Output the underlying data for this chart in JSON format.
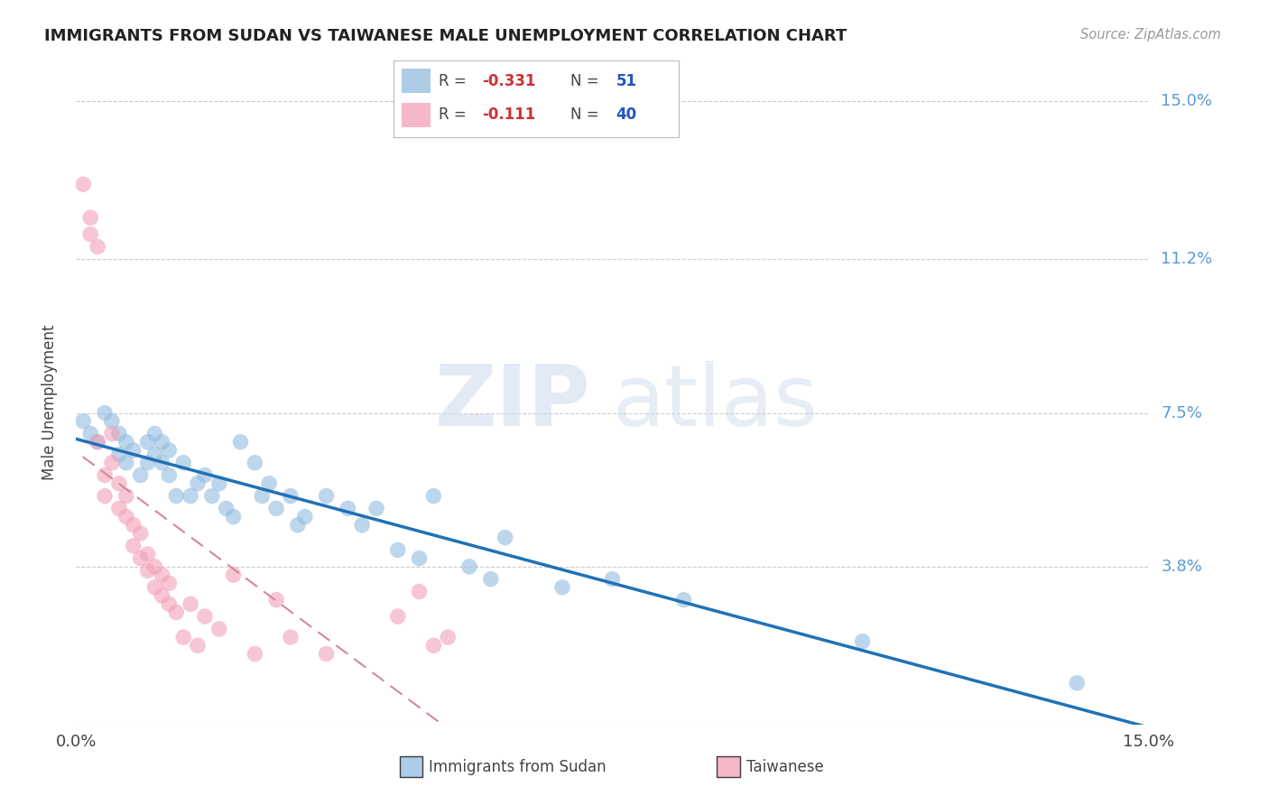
{
  "title": "IMMIGRANTS FROM SUDAN VS TAIWANESE MALE UNEMPLOYMENT CORRELATION CHART",
  "source": "Source: ZipAtlas.com",
  "ylabel": "Male Unemployment",
  "ytick_labels": [
    "",
    "3.8%",
    "7.5%",
    "11.2%",
    "15.0%"
  ],
  "ytick_vals": [
    0.0,
    0.038,
    0.075,
    0.112,
    0.15
  ],
  "xtick_vals": [
    0.0,
    0.025,
    0.05,
    0.075,
    0.1,
    0.125,
    0.15
  ],
  "xlim": [
    0.0,
    0.15
  ],
  "ylim": [
    0.0,
    0.155
  ],
  "watermark_zip": "ZIP",
  "watermark_atlas": "atlas",
  "blue_color": "#92bce0",
  "pink_color": "#f2a0b8",
  "trendline_blue": "#2171b5",
  "trendline_pink": "#d4879c",
  "right_axis_color": "#5b9bd5",
  "legend_R1": "-0.331",
  "legend_N1": "51",
  "legend_R2": "-0.111",
  "legend_N2": "40",
  "sudan_points": [
    [
      0.001,
      0.073
    ],
    [
      0.002,
      0.07
    ],
    [
      0.003,
      0.068
    ],
    [
      0.004,
      0.075
    ],
    [
      0.005,
      0.073
    ],
    [
      0.006,
      0.07
    ],
    [
      0.006,
      0.065
    ],
    [
      0.007,
      0.068
    ],
    [
      0.007,
      0.063
    ],
    [
      0.008,
      0.066
    ],
    [
      0.009,
      0.06
    ],
    [
      0.01,
      0.068
    ],
    [
      0.01,
      0.063
    ],
    [
      0.011,
      0.07
    ],
    [
      0.011,
      0.065
    ],
    [
      0.012,
      0.068
    ],
    [
      0.012,
      0.063
    ],
    [
      0.013,
      0.066
    ],
    [
      0.013,
      0.06
    ],
    [
      0.014,
      0.055
    ],
    [
      0.015,
      0.063
    ],
    [
      0.016,
      0.055
    ],
    [
      0.017,
      0.058
    ],
    [
      0.018,
      0.06
    ],
    [
      0.019,
      0.055
    ],
    [
      0.02,
      0.058
    ],
    [
      0.021,
      0.052
    ],
    [
      0.022,
      0.05
    ],
    [
      0.023,
      0.068
    ],
    [
      0.025,
      0.063
    ],
    [
      0.026,
      0.055
    ],
    [
      0.027,
      0.058
    ],
    [
      0.028,
      0.052
    ],
    [
      0.03,
      0.055
    ],
    [
      0.031,
      0.048
    ],
    [
      0.032,
      0.05
    ],
    [
      0.035,
      0.055
    ],
    [
      0.038,
      0.052
    ],
    [
      0.04,
      0.048
    ],
    [
      0.042,
      0.052
    ],
    [
      0.045,
      0.042
    ],
    [
      0.048,
      0.04
    ],
    [
      0.05,
      0.055
    ],
    [
      0.055,
      0.038
    ],
    [
      0.058,
      0.035
    ],
    [
      0.06,
      0.045
    ],
    [
      0.068,
      0.033
    ],
    [
      0.075,
      0.035
    ],
    [
      0.085,
      0.03
    ],
    [
      0.11,
      0.02
    ],
    [
      0.14,
      0.01
    ]
  ],
  "taiwanese_points": [
    [
      0.001,
      0.13
    ],
    [
      0.002,
      0.118
    ],
    [
      0.002,
      0.122
    ],
    [
      0.003,
      0.115
    ],
    [
      0.003,
      0.068
    ],
    [
      0.004,
      0.06
    ],
    [
      0.004,
      0.055
    ],
    [
      0.005,
      0.07
    ],
    [
      0.005,
      0.063
    ],
    [
      0.006,
      0.058
    ],
    [
      0.006,
      0.052
    ],
    [
      0.007,
      0.05
    ],
    [
      0.007,
      0.055
    ],
    [
      0.008,
      0.048
    ],
    [
      0.008,
      0.043
    ],
    [
      0.009,
      0.046
    ],
    [
      0.009,
      0.04
    ],
    [
      0.01,
      0.037
    ],
    [
      0.01,
      0.041
    ],
    [
      0.011,
      0.038
    ],
    [
      0.011,
      0.033
    ],
    [
      0.012,
      0.036
    ],
    [
      0.012,
      0.031
    ],
    [
      0.013,
      0.029
    ],
    [
      0.013,
      0.034
    ],
    [
      0.014,
      0.027
    ],
    [
      0.015,
      0.021
    ],
    [
      0.016,
      0.029
    ],
    [
      0.017,
      0.019
    ],
    [
      0.018,
      0.026
    ],
    [
      0.02,
      0.023
    ],
    [
      0.022,
      0.036
    ],
    [
      0.025,
      0.017
    ],
    [
      0.028,
      0.03
    ],
    [
      0.03,
      0.021
    ],
    [
      0.035,
      0.017
    ],
    [
      0.045,
      0.026
    ],
    [
      0.048,
      0.032
    ],
    [
      0.05,
      0.019
    ],
    [
      0.052,
      0.021
    ]
  ]
}
